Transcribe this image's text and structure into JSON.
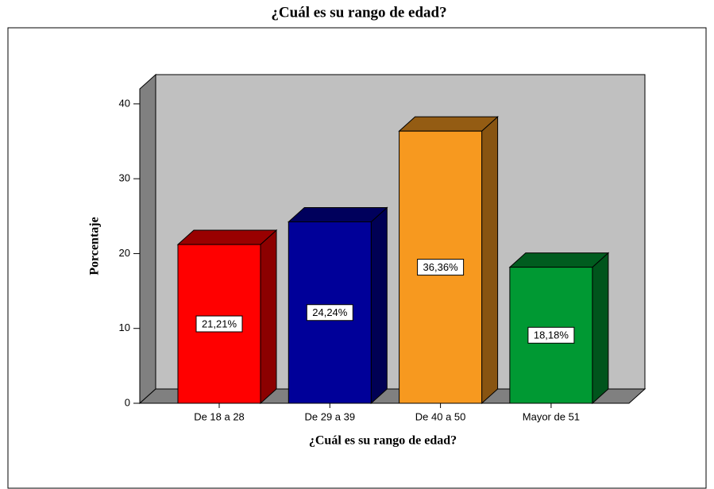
{
  "chart_data": {
    "type": "bar3d",
    "title": "¿Cuál es su rango de edad?",
    "xlabel": "¿Cuál es su rango de edad?",
    "ylabel": "Porcentaje",
    "categories": [
      "De 18 a 28",
      "De 29 a 39",
      "De 40 a 50",
      "Mayor de 51"
    ],
    "values": [
      21.21,
      24.24,
      36.36,
      18.18
    ],
    "value_labels": [
      "21,21%",
      "24,24%",
      "36,36%",
      "18,18%"
    ],
    "colors": [
      "#ff0000",
      "#000099",
      "#f7991f",
      "#009933"
    ],
    "ylim": [
      0,
      42
    ],
    "yticks": [
      0,
      10,
      20,
      30,
      40
    ],
    "grid": false
  }
}
